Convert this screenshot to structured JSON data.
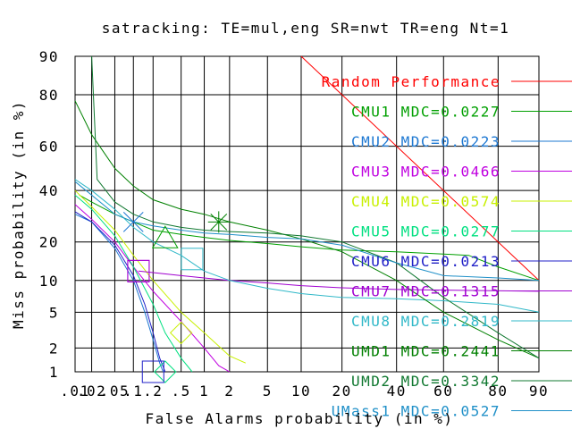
{
  "chart_data": {
    "type": "line",
    "title": "satracking: TE=mul,eng SR=nwt TR=eng Nt=1",
    "xlabel": "False Alarms probability (in %)",
    "ylabel": "Miss probability (in %)",
    "x_scale": "probit",
    "y_scale": "probit",
    "xlim": [
      0.01,
      90
    ],
    "ylim": [
      1,
      90
    ],
    "x_ticks": [
      {
        "value": 0.01,
        "label": ".01"
      },
      {
        "value": 0.02,
        "label": ".02"
      },
      {
        "value": 0.05,
        "label": ".05"
      },
      {
        "value": 0.1,
        "label": ".1"
      },
      {
        "value": 0.2,
        "label": ".2"
      },
      {
        "value": 0.5,
        "label": ".5"
      },
      {
        "value": 1,
        "label": "1"
      },
      {
        "value": 2,
        "label": "2"
      },
      {
        "value": 5,
        "label": "5"
      },
      {
        "value": 10,
        "label": "10"
      },
      {
        "value": 20,
        "label": "20"
      },
      {
        "value": 40,
        "label": "40"
      },
      {
        "value": 60,
        "label": "60"
      },
      {
        "value": 80,
        "label": "80"
      },
      {
        "value": 90,
        "label": "90"
      }
    ],
    "y_ticks": [
      {
        "value": 1,
        "label": "1"
      },
      {
        "value": 2,
        "label": "2"
      },
      {
        "value": 5,
        "label": "5"
      },
      {
        "value": 10,
        "label": "10"
      },
      {
        "value": 20,
        "label": "20"
      },
      {
        "value": 40,
        "label": "40"
      },
      {
        "value": 60,
        "label": "60"
      },
      {
        "value": 80,
        "label": "80"
      },
      {
        "value": 90,
        "label": "90"
      }
    ],
    "grid": true,
    "legend_position": "right",
    "series": [
      {
        "name": "Random Performance",
        "color": "#ff0000",
        "marker": "none",
        "points": [
          [
            10,
            90
          ],
          [
            90,
            10
          ]
        ]
      },
      {
        "name": "CMU1 MDC=0.0227",
        "color": "#00a000",
        "marker": "triangle",
        "marker_at": [
          0.3,
          21
        ],
        "points": [
          [
            0.012,
            38
          ],
          [
            0.02,
            35
          ],
          [
            0.05,
            30
          ],
          [
            0.1,
            27
          ],
          [
            0.2,
            24
          ],
          [
            0.5,
            22.5
          ],
          [
            1,
            21.5
          ],
          [
            2,
            20.5
          ],
          [
            5,
            19.5
          ],
          [
            10,
            18.5
          ],
          [
            20,
            17.5
          ],
          [
            40,
            17
          ],
          [
            70,
            16
          ],
          [
            80,
            13
          ],
          [
            90,
            10
          ]
        ]
      },
      {
        "name": "CMU2 MDC=0.0223",
        "color": "#1e78d2",
        "marker": "x",
        "marker_at": [
          0.1,
          27
        ],
        "points": [
          [
            0.01,
            30
          ],
          [
            0.02,
            27
          ],
          [
            0.05,
            18
          ],
          [
            0.1,
            10
          ],
          [
            0.15,
            5
          ],
          [
            0.2,
            2.5
          ],
          [
            0.25,
            1.3
          ],
          [
            0.28,
            1
          ]
        ]
      },
      {
        "name": "CMU3 MDC=0.0466",
        "color": "#c000e0",
        "marker": "square",
        "marker_at": [
          0.12,
          12
        ],
        "points": [
          [
            0.01,
            34
          ],
          [
            0.02,
            28
          ],
          [
            0.05,
            20
          ],
          [
            0.1,
            13
          ],
          [
            0.2,
            8
          ],
          [
            0.5,
            4
          ],
          [
            1,
            2
          ],
          [
            1.5,
            1.2
          ],
          [
            2,
            1
          ]
        ]
      },
      {
        "name": "CMU4 MDC=0.0574",
        "color": "#c8f000",
        "marker": "diamond",
        "marker_at": [
          0.5,
          3
        ],
        "points": [
          [
            0.01,
            40
          ],
          [
            0.02,
            33
          ],
          [
            0.05,
            24
          ],
          [
            0.1,
            16
          ],
          [
            0.2,
            10
          ],
          [
            0.5,
            5
          ],
          [
            1,
            3
          ],
          [
            2,
            1.6
          ],
          [
            3,
            1.3
          ]
        ]
      },
      {
        "name": "CMU5 MDC=0.0277",
        "color": "#00e080",
        "marker": "diamond",
        "marker_at": [
          0.3,
          1
        ],
        "points": [
          [
            0.01,
            38
          ],
          [
            0.02,
            32
          ],
          [
            0.05,
            22
          ],
          [
            0.1,
            13
          ],
          [
            0.2,
            6
          ],
          [
            0.3,
            3
          ],
          [
            0.5,
            1.5
          ],
          [
            0.7,
            1
          ]
        ]
      },
      {
        "name": "CMU6 MDC=0.0213",
        "color": "#2020c8",
        "marker": "square",
        "marker_at": [
          0.2,
          1
        ],
        "points": [
          [
            0.01,
            31
          ],
          [
            0.02,
            27
          ],
          [
            0.05,
            19
          ],
          [
            0.1,
            11
          ],
          [
            0.15,
            6
          ],
          [
            0.2,
            3
          ],
          [
            0.25,
            1.5
          ],
          [
            0.3,
            1
          ]
        ]
      },
      {
        "name": "CMU7 MDC=0.1315",
        "color": "#a000d0",
        "marker": "square",
        "marker_at": [
          0.12,
          12
        ],
        "points": [
          [
            0.12,
            12
          ],
          [
            0.5,
            11
          ],
          [
            1,
            10.5
          ],
          [
            2,
            10
          ],
          [
            5,
            9.5
          ],
          [
            10,
            9
          ],
          [
            20,
            8.6
          ],
          [
            40,
            8.3
          ],
          [
            90,
            8
          ]
        ]
      },
      {
        "name": "CMU8 MDC=0.2819",
        "color": "#30b8c8",
        "marker": "square",
        "marker_at": [
          0.7,
          15
        ],
        "points": [
          [
            0.01,
            45
          ],
          [
            0.02,
            40
          ],
          [
            0.05,
            32
          ],
          [
            0.1,
            25
          ],
          [
            0.2,
            20
          ],
          [
            0.5,
            16
          ],
          [
            1,
            12
          ],
          [
            2,
            10
          ],
          [
            5,
            8.5
          ],
          [
            10,
            7.6
          ],
          [
            20,
            7
          ],
          [
            40,
            6.8
          ],
          [
            60,
            6.5
          ],
          [
            80,
            6
          ],
          [
            90,
            5
          ]
        ]
      },
      {
        "name": "UMD1 MDC=0.2441",
        "color": "#008000",
        "marker": "asterisk",
        "marker_at": [
          1.5,
          27
        ],
        "points": [
          [
            0.01,
            78
          ],
          [
            0.02,
            65
          ],
          [
            0.05,
            50
          ],
          [
            0.1,
            42
          ],
          [
            0.2,
            36
          ],
          [
            0.5,
            32
          ],
          [
            1,
            30
          ],
          [
            2,
            27
          ],
          [
            5,
            24
          ],
          [
            10,
            21
          ],
          [
            20,
            17
          ],
          [
            40,
            10
          ],
          [
            60,
            5
          ],
          [
            80,
            2.5
          ],
          [
            90,
            1.5
          ]
        ]
      },
      {
        "name": "UMD2 MDC=0.3342",
        "color": "#107830",
        "marker": "none",
        "points": [
          [
            0.02,
            90
          ],
          [
            0.025,
            45
          ],
          [
            0.05,
            35
          ],
          [
            0.1,
            30
          ],
          [
            0.2,
            27
          ],
          [
            0.5,
            25
          ],
          [
            1,
            24
          ],
          [
            2,
            23.5
          ],
          [
            5,
            23
          ],
          [
            10,
            22
          ],
          [
            20,
            20
          ],
          [
            40,
            14
          ],
          [
            60,
            7
          ],
          [
            80,
            3
          ],
          [
            90,
            1.5
          ]
        ]
      },
      {
        "name": "UMass1 MDC=0.0527",
        "color": "#2090c8",
        "marker": "none",
        "points": [
          [
            0.01,
            44
          ],
          [
            0.02,
            38
          ],
          [
            0.05,
            30
          ],
          [
            0.1,
            27
          ],
          [
            0.2,
            25.5
          ],
          [
            0.5,
            24
          ],
          [
            1,
            23
          ],
          [
            2,
            22.5
          ],
          [
            5,
            21.5
          ],
          [
            10,
            21
          ],
          [
            20,
            19
          ],
          [
            40,
            14
          ],
          [
            60,
            11
          ],
          [
            80,
            10.5
          ],
          [
            90,
            10
          ]
        ]
      }
    ]
  }
}
